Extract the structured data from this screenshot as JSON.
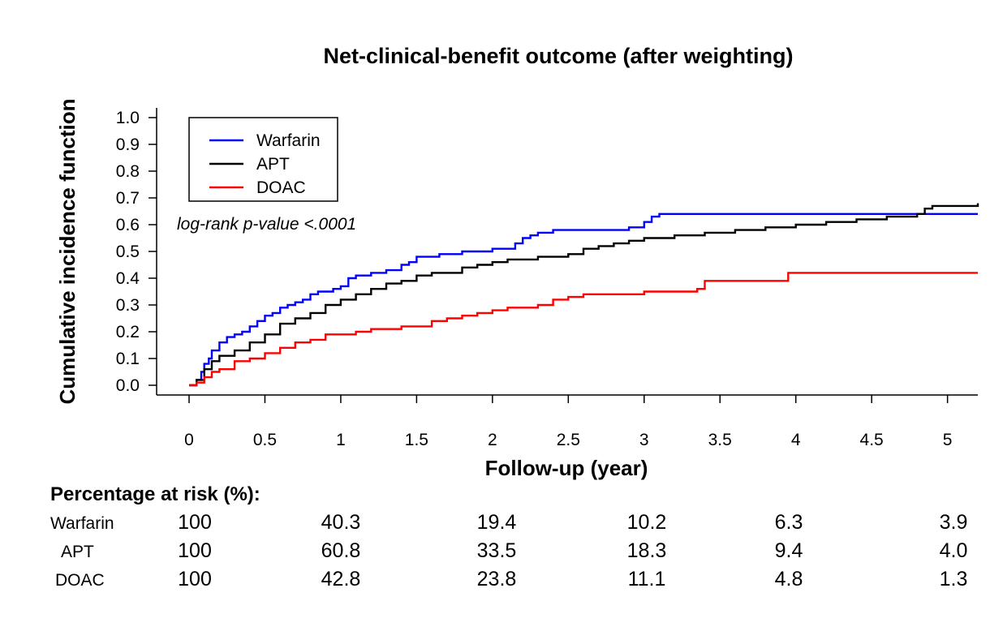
{
  "chart_data": {
    "type": "line",
    "title": "Net-clinical-benefit outcome (after weighting)",
    "xlabel": "Follow-up (year)",
    "ylabel": "Cumulative incidence function",
    "xlim": [
      0,
      5.2
    ],
    "ylim": [
      0,
      1.0
    ],
    "x_ticks": [
      "0",
      "0.5",
      "1",
      "1.5",
      "2",
      "2.5",
      "3",
      "3.5",
      "4",
      "4.5",
      "5"
    ],
    "y_ticks": [
      "0.0",
      "0.1",
      "0.2",
      "0.3",
      "0.4",
      "0.5",
      "0.6",
      "0.7",
      "0.8",
      "0.9",
      "1.0"
    ],
    "grid": false,
    "legend_position": "top-left",
    "annotation": "log-rank p-value <.0001",
    "series": [
      {
        "name": "Warfarin",
        "color": "#0000ff",
        "x": [
          0,
          0.05,
          0.08,
          0.1,
          0.13,
          0.15,
          0.2,
          0.25,
          0.3,
          0.35,
          0.4,
          0.45,
          0.5,
          0.55,
          0.6,
          0.65,
          0.7,
          0.75,
          0.8,
          0.85,
          0.9,
          0.95,
          1.0,
          1.05,
          1.1,
          1.2,
          1.3,
          1.4,
          1.45,
          1.5,
          1.55,
          1.65,
          1.75,
          1.8,
          1.9,
          2.0,
          2.1,
          2.15,
          2.2,
          2.25,
          2.3,
          2.4,
          2.5,
          2.6,
          2.7,
          2.8,
          2.9,
          3.0,
          3.05,
          3.1,
          3.3,
          3.5,
          3.8,
          4.2,
          4.6,
          5.0,
          5.2
        ],
        "y": [
          0,
          0.02,
          0.05,
          0.08,
          0.1,
          0.13,
          0.16,
          0.18,
          0.19,
          0.2,
          0.22,
          0.24,
          0.26,
          0.27,
          0.29,
          0.3,
          0.31,
          0.32,
          0.34,
          0.35,
          0.35,
          0.36,
          0.37,
          0.4,
          0.41,
          0.42,
          0.43,
          0.45,
          0.46,
          0.48,
          0.48,
          0.49,
          0.49,
          0.5,
          0.5,
          0.51,
          0.51,
          0.53,
          0.55,
          0.56,
          0.57,
          0.58,
          0.58,
          0.58,
          0.58,
          0.58,
          0.59,
          0.61,
          0.63,
          0.64,
          0.64,
          0.64,
          0.64,
          0.64,
          0.64,
          0.64,
          0.64
        ]
      },
      {
        "name": "APT",
        "color": "#000000",
        "x": [
          0,
          0.05,
          0.1,
          0.15,
          0.2,
          0.3,
          0.4,
          0.5,
          0.6,
          0.7,
          0.8,
          0.9,
          1.0,
          1.1,
          1.2,
          1.3,
          1.4,
          1.5,
          1.6,
          1.7,
          1.8,
          1.9,
          2.0,
          2.1,
          2.2,
          2.3,
          2.4,
          2.5,
          2.6,
          2.7,
          2.8,
          2.9,
          3.0,
          3.2,
          3.4,
          3.6,
          3.8,
          4.0,
          4.2,
          4.4,
          4.6,
          4.8,
          4.85,
          4.9,
          5.2
        ],
        "y": [
          0,
          0.02,
          0.06,
          0.09,
          0.11,
          0.13,
          0.16,
          0.19,
          0.23,
          0.25,
          0.27,
          0.3,
          0.32,
          0.34,
          0.36,
          0.38,
          0.39,
          0.41,
          0.42,
          0.42,
          0.44,
          0.45,
          0.46,
          0.47,
          0.47,
          0.48,
          0.48,
          0.49,
          0.51,
          0.52,
          0.53,
          0.54,
          0.55,
          0.56,
          0.57,
          0.58,
          0.59,
          0.6,
          0.61,
          0.62,
          0.63,
          0.64,
          0.66,
          0.67,
          0.68
        ]
      },
      {
        "name": "DOAC",
        "color": "#ff0000",
        "x": [
          0,
          0.05,
          0.1,
          0.15,
          0.2,
          0.3,
          0.4,
          0.5,
          0.6,
          0.7,
          0.8,
          0.9,
          1.0,
          1.1,
          1.2,
          1.3,
          1.4,
          1.5,
          1.6,
          1.7,
          1.8,
          1.9,
          2.0,
          2.1,
          2.2,
          2.3,
          2.4,
          2.5,
          2.6,
          2.8,
          3.0,
          3.2,
          3.35,
          3.4,
          3.6,
          3.9,
          3.95,
          4.2,
          4.6,
          5.0,
          5.2
        ],
        "y": [
          0,
          0.01,
          0.03,
          0.05,
          0.06,
          0.09,
          0.1,
          0.12,
          0.14,
          0.16,
          0.17,
          0.19,
          0.19,
          0.2,
          0.21,
          0.21,
          0.22,
          0.22,
          0.24,
          0.25,
          0.26,
          0.27,
          0.28,
          0.29,
          0.29,
          0.3,
          0.32,
          0.33,
          0.34,
          0.34,
          0.35,
          0.35,
          0.36,
          0.39,
          0.39,
          0.39,
          0.42,
          0.42,
          0.42,
          0.42,
          0.42
        ]
      }
    ]
  },
  "risk_table": {
    "title": "Percentage at risk (%):",
    "rows": [
      {
        "label": "Warfarin",
        "values": [
          "100",
          "40.3",
          "19.4",
          "10.2",
          "6.3",
          "3.9"
        ]
      },
      {
        "label": "APT",
        "values": [
          "100",
          "60.8",
          "33.5",
          "18.3",
          "9.4",
          "4.0"
        ]
      },
      {
        "label": "DOAC",
        "values": [
          "100",
          "42.8",
          "23.8",
          "11.1",
          "4.8",
          "1.3"
        ]
      }
    ]
  }
}
